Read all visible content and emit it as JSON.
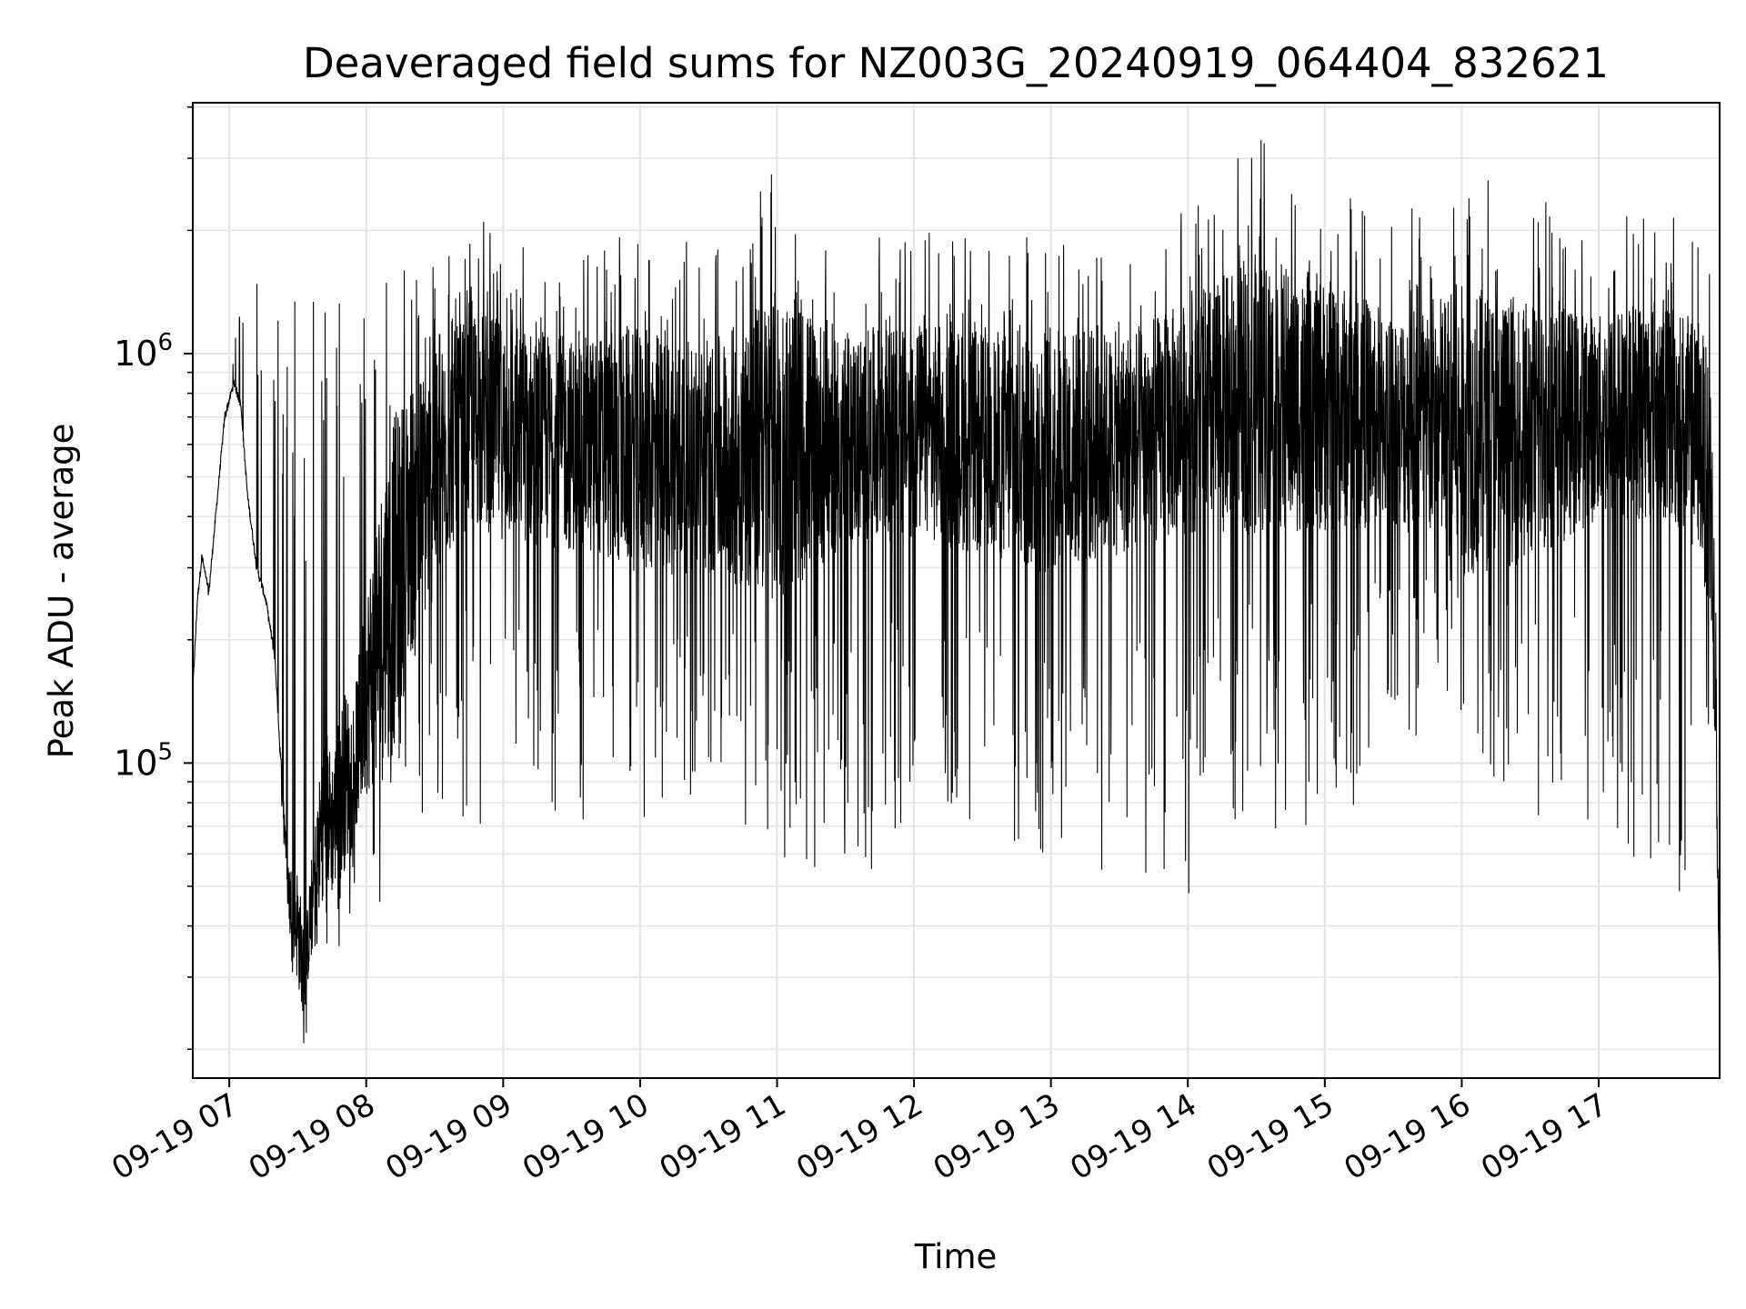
{
  "chart_data": {
    "type": "line",
    "title": "Deaveraged field sums for NZ003G_20240919_064404_832621",
    "xlabel": "Time",
    "ylabel": "Peak ADU - average",
    "yscale": "log",
    "ylim": [
      17000,
      4100000
    ],
    "xlim": [
      "2024-09-19 06:44",
      "2024-09-19 17:53"
    ],
    "grid": true,
    "line_color": "#000000",
    "x_ticks": [
      "09-19 07",
      "09-19 08",
      "09-19 09",
      "09-19 10",
      "09-19 11",
      "09-19 12",
      "09-19 13",
      "09-19 14",
      "09-19 15",
      "09-19 16",
      "09-19 17"
    ],
    "y_ticks": [
      {
        "base": "10",
        "exp": "5",
        "value": 100000
      },
      {
        "base": "10",
        "exp": "6",
        "value": 1000000
      }
    ],
    "series": [
      {
        "x": [
          "2024-09-19 06:44",
          "2024-09-19 06:46",
          "2024-09-19 06:48",
          "2024-09-19 06:51",
          "2024-09-19 06:54",
          "2024-09-19 06:58",
          "2024-09-19 07:02",
          "2024-09-19 07:05",
          "2024-09-19 07:08",
          "2024-09-19 07:12",
          "2024-09-19 07:16",
          "2024-09-19 07:20",
          "2024-09-19 07:23",
          "2024-09-19 07:26",
          "2024-09-19 07:30",
          "2024-09-19 07:33",
          "2024-09-19 07:36",
          "2024-09-19 07:39",
          "2024-09-19 07:42",
          "2024-09-19 07:45",
          "2024-09-19 07:50",
          "2024-09-19 07:55",
          "2024-09-19 08:00",
          "2024-09-19 08:10",
          "2024-09-19 08:20",
          "2024-09-19 08:30",
          "2024-09-19 08:40",
          "2024-09-19 08:50",
          "2024-09-19 09:00",
          "2024-09-19 09:30",
          "2024-09-19 10:00",
          "2024-09-19 10:30",
          "2024-09-19 11:00",
          "2024-09-19 11:30",
          "2024-09-19 12:00",
          "2024-09-19 12:30",
          "2024-09-19 13:00",
          "2024-09-19 13:30",
          "2024-09-19 14:00",
          "2024-09-19 14:30",
          "2024-09-19 15:00",
          "2024-09-19 15:30",
          "2024-09-19 16:00",
          "2024-09-19 16:30",
          "2024-09-19 17:00",
          "2024-09-19 17:30",
          "2024-09-19 17:45",
          "2024-09-19 17:50",
          "2024-09-19 17:53"
        ],
        "y": [
          150000,
          250000,
          320000,
          260000,
          400000,
          700000,
          850000,
          750000,
          450000,
          300000,
          250000,
          180000,
          90000,
          50000,
          40000,
          30000,
          45000,
          60000,
          80000,
          70000,
          90000,
          100000,
          150000,
          250000,
          400000,
          500000,
          650000,
          700000,
          650000,
          600000,
          580000,
          550000,
          600000,
          620000,
          650000,
          600000,
          580000,
          600000,
          700000,
          800000,
          750000,
          700000,
          650000,
          650000,
          700000,
          750000,
          600000,
          400000,
          25000
        ],
        "spikes_min": [
          150000,
          250000,
          320000,
          260000,
          400000,
          700000,
          850000,
          750000,
          450000,
          300000,
          250000,
          220000,
          75000,
          40000,
          21000,
          20000,
          28000,
          30000,
          34000,
          34000,
          35000,
          48000,
          52000,
          41000,
          70000,
          68000,
          75000,
          70000,
          70000,
          72000,
          69000,
          85000,
          60000,
          49000,
          66000,
          62000,
          50000,
          55000,
          47000,
          68000,
          63000,
          100000,
          115000,
          68000,
          70000,
          48000,
          40000,
          120000,
          25000
        ],
        "spikes_max": [
          150000,
          250000,
          320000,
          260000,
          400000,
          950000,
          1050000,
          1350000,
          950000,
          1650000,
          1400000,
          1380000,
          1400000,
          1380000,
          1400000,
          1380000,
          1420000,
          1400000,
          1420000,
          1400000,
          1650000,
          1700000,
          1450000,
          1500000,
          1650000,
          1750000,
          1900000,
          2200000,
          2000000,
          1800000,
          2050000,
          1800000,
          3000000,
          1850000,
          2000000,
          1900000,
          2100000,
          1900000,
          2300000,
          3400000,
          2800000,
          2100000,
          2900000,
          2500000,
          2000000,
          2500000,
          1900000,
          1800000,
          25000
        ]
      }
    ]
  }
}
